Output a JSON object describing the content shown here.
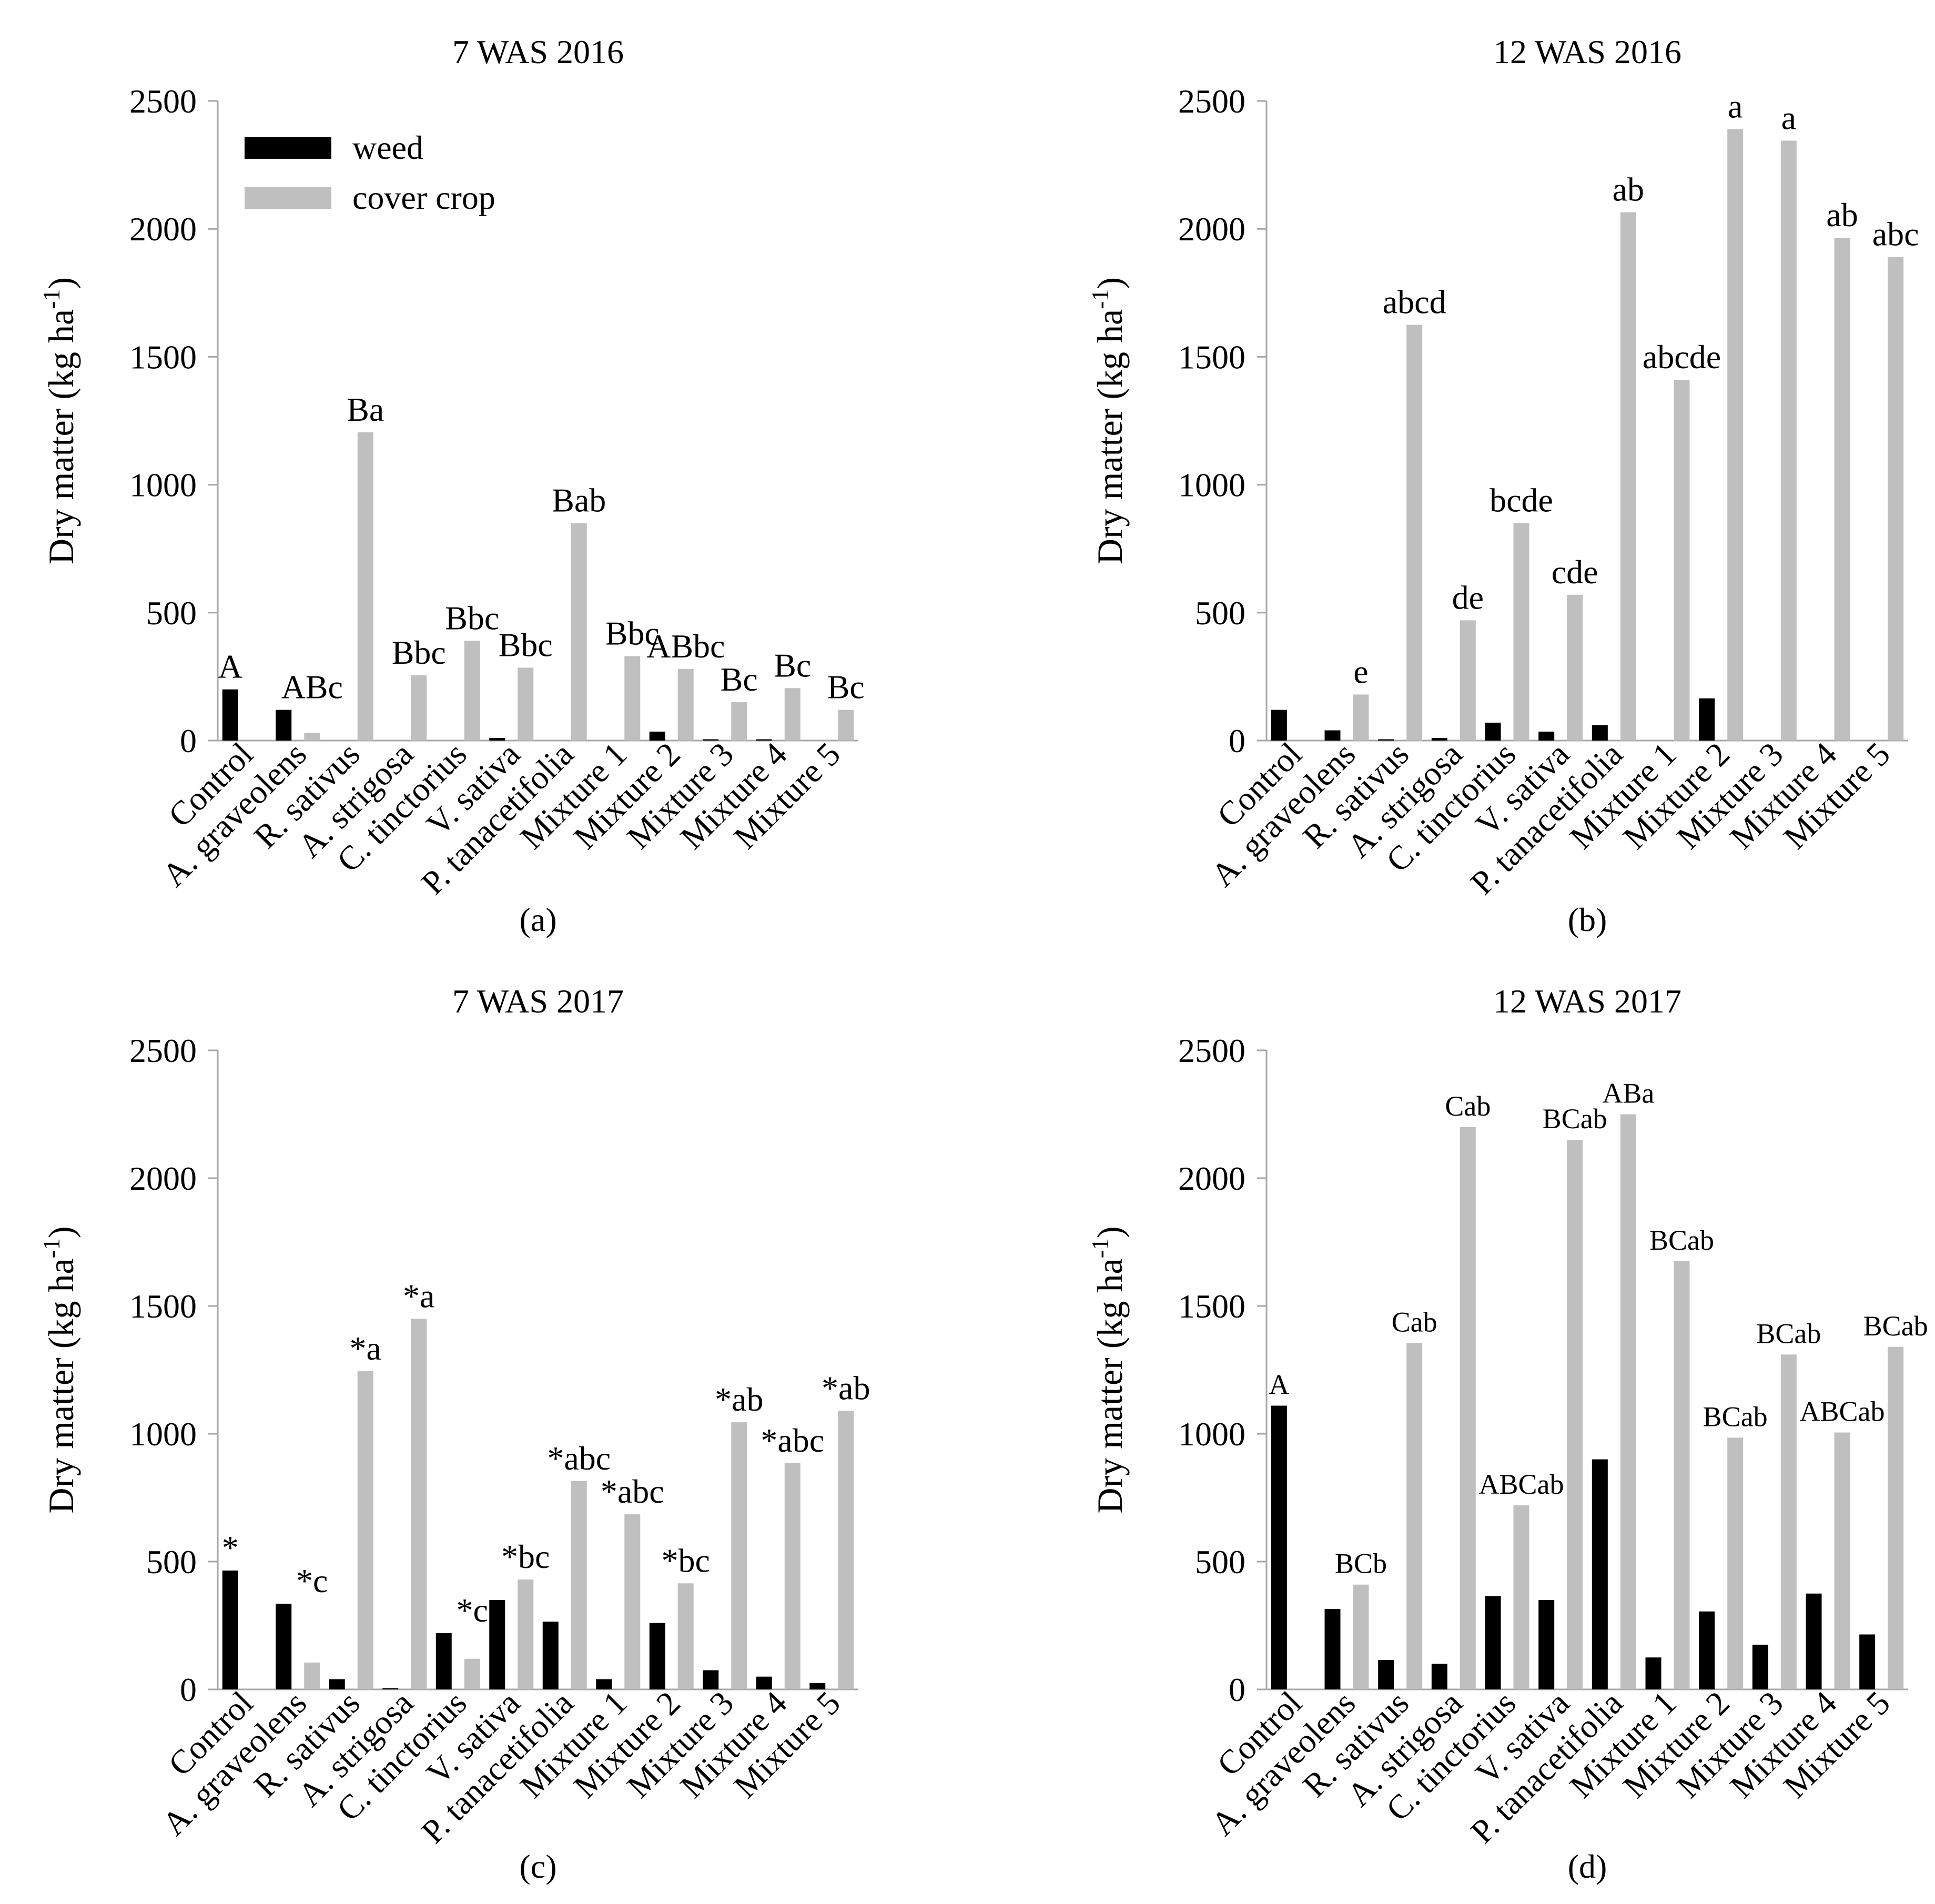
{
  "colors": {
    "weed": "#000000",
    "cover": "#bfbfbf",
    "axis": "#a6a6a6"
  },
  "legend": {
    "placement": "top-left",
    "items": [
      {
        "label": "weed",
        "color": "#000000"
      },
      {
        "label": "cover crop",
        "color": "#bfbfbf"
      }
    ]
  },
  "chart_data": [
    {
      "type": "bar",
      "title": "7 WAS 2016",
      "panel_label": "(a)",
      "ylabel": "Dry matter (kg ha-1)",
      "ylim": [
        0,
        2500
      ],
      "yticks": [
        "0",
        "500",
        "1000",
        "1500",
        "2000",
        "2500"
      ],
      "categories": [
        "Control",
        "A. graveolens",
        "R. sativus",
        "A. strigosa",
        "C. tinctorius",
        "V. sativa",
        "P. tanacetifolia",
        "Mixture 1",
        "Mixture 2",
        "Mixture 3",
        "Mixture 4",
        "Mixture 5"
      ],
      "series": [
        {
          "name": "weed",
          "values": [
            200,
            120,
            0,
            0,
            0,
            10,
            0,
            0,
            35,
            5,
            5,
            0
          ]
        },
        {
          "name": "cover crop",
          "values": [
            0,
            30,
            1205,
            255,
            390,
            285,
            850,
            330,
            280,
            150,
            205,
            120
          ]
        }
      ],
      "annotations": [
        "A",
        "ABc",
        "Ba",
        "Bbc",
        "Bbc",
        "Bbc",
        "Bab",
        "Bbc",
        "ABbc",
        "Bc",
        "Bc",
        "Bc"
      ]
    },
    {
      "type": "bar",
      "title": "12 WAS 2016",
      "panel_label": "(b)",
      "ylabel": "Dry matter (kg ha-1)",
      "ylim": [
        0,
        2500
      ],
      "yticks": [
        "0",
        "500",
        "1000",
        "1500",
        "2000",
        "2500"
      ],
      "categories": [
        "Control",
        "A. graveolens",
        "R. sativus",
        "A. strigosa",
        "C. tinctorius",
        "V. sativa",
        "P. tanacetifolia",
        "Mixture 1",
        "Mixture 2",
        "Mixture 3",
        "Mixture 4",
        "Mixture 5"
      ],
      "series": [
        {
          "name": "weed",
          "values": [
            120,
            40,
            5,
            10,
            70,
            35,
            60,
            0,
            165,
            0,
            0,
            0
          ]
        },
        {
          "name": "cover crop",
          "values": [
            0,
            180,
            1625,
            470,
            850,
            570,
            2065,
            1410,
            2390,
            2345,
            1965,
            1890
          ]
        }
      ],
      "annotations": [
        "",
        "e",
        "abcd",
        "de",
        "bcde",
        "cde",
        "ab",
        "abcde",
        "a",
        "a",
        "ab",
        "abc"
      ]
    },
    {
      "type": "bar",
      "title": "7 WAS 2017",
      "panel_label": "(c)",
      "ylabel": "Dry matter (kg ha-1)",
      "ylim": [
        0,
        2500
      ],
      "yticks": [
        "0",
        "500",
        "1000",
        "1500",
        "2000",
        "2500"
      ],
      "categories": [
        "Control",
        "A. graveolens",
        "R. sativus",
        "A. strigosa",
        "C. tinctorius",
        "V. sativa",
        "P. tanacetifolia",
        "Mixture 1",
        "Mixture 2",
        "Mixture 3",
        "Mixture 4",
        "Mixture 5"
      ],
      "series": [
        {
          "name": "weed",
          "values": [
            465,
            335,
            40,
            5,
            220,
            350,
            265,
            40,
            260,
            75,
            50,
            25
          ]
        },
        {
          "name": "cover crop",
          "values": [
            0,
            105,
            1245,
            1450,
            120,
            430,
            815,
            685,
            415,
            1045,
            885,
            1090
          ]
        }
      ],
      "annotations": [
        "*",
        "*c",
        "*a",
        "*a",
        "*c",
        "*bc",
        "*abc",
        "*abc",
        "*bc",
        "*ab",
        "*abc",
        "*ab"
      ]
    },
    {
      "type": "bar",
      "title": "12 WAS 2017",
      "panel_label": "(d)",
      "ylabel": "Dry matter (kg ha-1)",
      "ylim": [
        0,
        2500
      ],
      "yticks": [
        "0",
        "500",
        "1000",
        "1500",
        "2000",
        "2500"
      ],
      "categories": [
        "Control",
        "A. graveolens",
        "R. sativus",
        "A. strigosa",
        "C. tinctorius",
        "V. sativa",
        "P. tanacetifolia",
        "Mixture 1",
        "Mixture 2",
        "Mixture 3",
        "Mixture 4",
        "Mixture 5"
      ],
      "series": [
        {
          "name": "weed",
          "values": [
            1110,
            315,
            115,
            100,
            365,
            350,
            900,
            125,
            305,
            175,
            375,
            215
          ]
        },
        {
          "name": "cover crop",
          "values": [
            0,
            410,
            1355,
            2200,
            720,
            2150,
            2250,
            1675,
            985,
            1310,
            1005,
            1340
          ]
        }
      ],
      "annotations": [
        "A",
        "BCb",
        "Cab",
        "Cab",
        "ABCab",
        "BCab",
        "ABa",
        "BCab",
        "BCab",
        "BCab",
        "ABCab",
        "BCab"
      ]
    }
  ]
}
